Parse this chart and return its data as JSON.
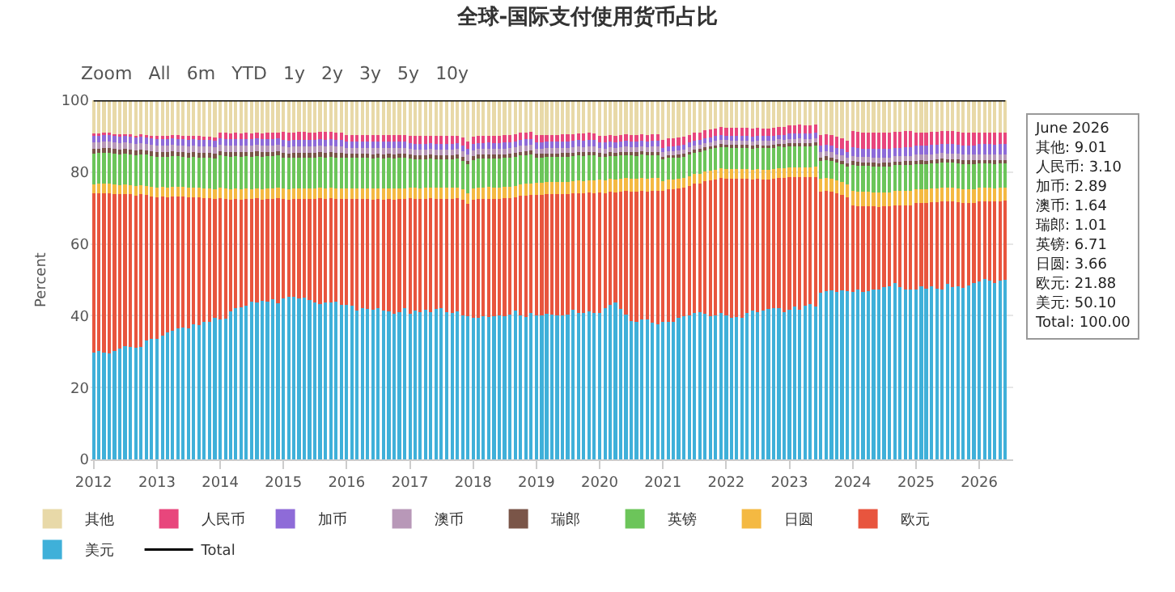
{
  "chart_data": {
    "type": "bar",
    "stacked": true,
    "title": "全球-国际支付使用货币占比",
    "ylabel": "Percent",
    "annotations": [
      "Zoom",
      "All",
      "6m",
      "YTD",
      "1y",
      "2y",
      "3y",
      "5y",
      "10y",
      "June 2026\n其他: 9.01\n人民币: 3.10\n加币: 2.89\n澳币: 1.64\n瑞郎: 1.01\n英镑: 6.71\n日圆: 3.66\n欧元: 21.88\n美元: 50.10\nTotal: 100.00"
    ],
    "x": [
      "2012-01",
      "2012-02",
      "2012-03",
      "2012-04",
      "2012-05",
      "2012-06",
      "2012-07",
      "2012-08",
      "2012-09",
      "2012-10",
      "2012-11",
      "2012-12",
      "2013-01",
      "2013-02",
      "2013-03",
      "2013-04",
      "2013-05",
      "2013-06",
      "2013-07",
      "2013-08",
      "2013-09",
      "2013-10",
      "2013-11",
      "2013-12",
      "2014-01",
      "2014-02",
      "2014-03",
      "2014-04",
      "2014-05",
      "2014-06",
      "2014-07",
      "2014-08",
      "2014-09",
      "2014-10",
      "2014-11",
      "2014-12",
      "2015-01",
      "2015-02",
      "2015-03",
      "2015-04",
      "2015-05",
      "2015-06",
      "2015-07",
      "2015-08",
      "2015-09",
      "2015-10",
      "2015-11",
      "2015-12",
      "2016-01",
      "2016-02",
      "2016-03",
      "2016-04",
      "2016-05",
      "2016-06",
      "2016-07",
      "2016-08",
      "2016-09",
      "2016-10",
      "2016-11",
      "2016-12",
      "2017-01",
      "2017-02",
      "2017-03",
      "2017-04",
      "2017-05",
      "2017-06",
      "2017-07",
      "2017-08",
      "2017-09",
      "2017-10",
      "2017-11",
      "2017-12",
      "2018-01",
      "2018-02",
      "2018-03",
      "2018-04",
      "2018-05",
      "2018-06",
      "2018-07",
      "2018-08",
      "2018-09",
      "2018-10",
      "2018-11",
      "2018-12",
      "2019-01",
      "2019-02",
      "2019-03",
      "2019-04",
      "2019-05",
      "2019-06",
      "2019-07",
      "2019-08",
      "2019-09",
      "2019-10",
      "2019-11",
      "2019-12",
      "2020-01",
      "2020-02",
      "2020-03",
      "2020-04",
      "2020-05",
      "2020-06",
      "2020-07",
      "2020-08",
      "2020-09",
      "2020-10",
      "2020-11",
      "2020-12",
      "2021-01",
      "2021-02",
      "2021-03",
      "2021-04",
      "2021-05",
      "2021-06",
      "2021-07",
      "2021-08",
      "2021-09",
      "2021-10",
      "2021-11",
      "2021-12",
      "2022-01",
      "2022-02",
      "2022-03",
      "2022-04",
      "2022-05",
      "2022-06",
      "2022-07",
      "2022-08",
      "2022-09",
      "2022-10",
      "2022-11",
      "2022-12",
      "2023-01",
      "2023-02",
      "2023-03",
      "2023-04",
      "2023-05",
      "2023-06",
      "2023-07",
      "2023-08",
      "2023-09",
      "2023-10",
      "2023-11",
      "2023-12",
      "2024-01",
      "2024-02",
      "2024-03",
      "2024-04",
      "2024-05",
      "2024-06",
      "2024-07",
      "2024-08",
      "2024-09",
      "2024-10",
      "2024-11",
      "2024-12",
      "2025-01",
      "2025-02",
      "2025-03",
      "2025-04",
      "2025-05",
      "2025-06",
      "2025-07",
      "2025-08",
      "2025-09",
      "2025-10",
      "2025-11",
      "2025-12",
      "2026-01",
      "2026-02",
      "2026-03",
      "2026-04",
      "2026-05",
      "2026-06"
    ],
    "series": [
      {
        "name": "美元",
        "color": "#3fb0d9",
        "values": [
          29.7,
          30.1,
          29.8,
          29.6,
          30.2,
          30.9,
          31.6,
          31.2,
          31.0,
          31.4,
          33.1,
          33.5,
          33.6,
          34.5,
          35.4,
          35.9,
          36.4,
          36.8,
          36.5,
          37.6,
          37.3,
          38.2,
          38.4,
          39.5,
          39.0,
          39.1,
          41.2,
          42.1,
          42.4,
          42.7,
          43.9,
          43.8,
          44.2,
          44.0,
          44.6,
          43.5,
          44.8,
          45.3,
          45.2,
          44.8,
          45.1,
          44.4,
          43.8,
          43.3,
          43.6,
          43.8,
          44.0,
          43.1,
          43.0,
          42.9,
          41.4,
          42.1,
          42.0,
          41.6,
          42.2,
          41.5,
          41.2,
          40.6,
          41.0,
          42.1,
          40.5,
          41.4,
          40.9,
          41.6,
          41.0,
          41.8,
          42.1,
          41.0,
          40.8,
          41.2,
          40.2,
          39.9,
          39.4,
          39.5,
          39.8,
          39.7,
          39.9,
          40.0,
          39.8,
          40.4,
          41.5,
          40.1,
          39.7,
          40.8,
          40.1,
          40.1,
          40.6,
          40.3,
          40.2,
          40.0,
          40.4,
          41.6,
          40.7,
          40.8,
          41.3,
          40.8,
          40.8,
          42.2,
          43.1,
          43.6,
          42.0,
          40.3,
          38.6,
          38.3,
          38.9,
          38.9,
          38.1,
          37.6,
          38.3,
          38.4,
          38.2,
          39.4,
          39.8,
          40.0,
          40.7,
          41.0,
          40.5,
          39.9,
          40.1,
          40.8,
          40.0,
          39.4,
          39.6,
          39.4,
          40.7,
          41.5,
          41.1,
          41.4,
          41.9,
          42.2,
          42.1,
          40.9,
          41.7,
          42.6,
          41.7,
          42.7,
          43.2,
          42.6,
          46.5,
          46.8,
          47.0,
          46.6,
          47.0,
          46.9,
          46.6,
          47.2,
          46.6,
          46.9,
          47.4,
          47.2,
          47.9,
          48.3,
          49.1,
          47.9,
          47.4,
          47.2,
          47.3,
          48.1,
          47.6,
          48.3,
          47.5,
          47.4,
          48.8,
          48.0,
          48.2,
          47.8,
          48.5,
          49.1,
          49.6,
          50.3,
          49.8,
          49.1,
          49.7,
          50.1
        ]
      },
      {
        "name": "欧元",
        "color": "#e8553e",
        "values": [
          44.3,
          44.0,
          44.4,
          44.6,
          43.7,
          42.9,
          42.3,
          42.6,
          42.5,
          42.4,
          40.5,
          39.8,
          39.4,
          38.6,
          37.6,
          37.4,
          36.8,
          36.3,
          36.4,
          35.4,
          35.6,
          34.6,
          34.4,
          33.1,
          33.8,
          33.5,
          31.2,
          30.5,
          30.0,
          29.9,
          28.6,
          28.9,
          28.2,
          28.6,
          28.0,
          29.3,
          27.8,
          27.1,
          27.3,
          27.8,
          27.5,
          28.1,
          28.7,
          29.4,
          29.0,
          28.9,
          28.5,
          29.4,
          29.5,
          29.6,
          31.1,
          30.4,
          30.5,
          30.8,
          30.3,
          30.9,
          31.3,
          31.8,
          31.5,
          30.4,
          32.2,
          31.2,
          31.6,
          31.0,
          31.7,
          30.8,
          30.5,
          31.6,
          31.8,
          31.5,
          32.0,
          31.2,
          32.8,
          33.0,
          32.7,
          32.9,
          32.6,
          32.5,
          32.9,
          32.4,
          31.5,
          33.3,
          33.8,
          32.9,
          33.6,
          33.6,
          33.2,
          33.5,
          33.6,
          33.9,
          33.5,
          32.4,
          33.5,
          33.3,
          33.0,
          33.4,
          33.5,
          32.0,
          31.4,
          30.8,
          32.6,
          34.4,
          36.0,
          36.2,
          35.9,
          35.7,
          36.6,
          37.1,
          36.5,
          36.8,
          37.0,
          36.0,
          35.8,
          36.2,
          36.0,
          35.9,
          36.9,
          37.8,
          37.9,
          37.5,
          38.2,
          38.7,
          38.5,
          38.7,
          37.4,
          36.4,
          37.0,
          36.6,
          36.1,
          35.9,
          36.3,
          37.4,
          36.8,
          35.9,
          36.9,
          35.8,
          35.3,
          36.1,
          28.0,
          28.0,
          27.5,
          27.4,
          26.6,
          26.0,
          24.2,
          23.4,
          23.9,
          23.6,
          23.0,
          23.1,
          22.5,
          22.1,
          21.6,
          22.8,
          23.4,
          23.6,
          24.1,
          23.4,
          23.8,
          23.3,
          24.2,
          24.5,
          23.0,
          23.8,
          23.5,
          23.7,
          23.0,
          22.4,
          22.3,
          21.6,
          22.1,
          22.7,
          22.2,
          21.88
        ]
      },
      {
        "name": "日圆",
        "color": "#f4b942",
        "values": [
          2.6,
          2.6,
          2.6,
          2.6,
          2.6,
          2.6,
          2.6,
          2.6,
          2.6,
          2.6,
          2.6,
          2.6,
          2.7,
          2.7,
          2.7,
          2.7,
          2.7,
          2.7,
          2.7,
          2.7,
          2.7,
          2.7,
          2.7,
          2.7,
          2.8,
          2.8,
          2.8,
          2.8,
          2.8,
          2.8,
          2.8,
          2.8,
          2.8,
          2.8,
          2.8,
          2.8,
          2.9,
          2.9,
          2.9,
          2.9,
          2.9,
          2.9,
          2.9,
          2.9,
          2.9,
          2.9,
          2.9,
          2.9,
          3.0,
          3.0,
          3.0,
          3.0,
          3.0,
          3.0,
          3.0,
          3.0,
          3.0,
          3.0,
          3.0,
          3.0,
          3.0,
          3.0,
          3.0,
          3.0,
          3.0,
          3.0,
          3.0,
          3.0,
          3.0,
          3.0,
          3.0,
          3.0,
          3.2,
          3.2,
          3.2,
          3.2,
          3.2,
          3.2,
          3.2,
          3.2,
          3.2,
          3.2,
          3.2,
          3.2,
          3.4,
          3.4,
          3.4,
          3.4,
          3.4,
          3.4,
          3.4,
          3.4,
          3.4,
          3.4,
          3.4,
          3.4,
          3.6,
          3.6,
          3.6,
          3.6,
          3.6,
          3.6,
          3.6,
          3.6,
          3.6,
          3.6,
          3.6,
          3.6,
          2.7,
          2.7,
          2.7,
          2.7,
          2.7,
          2.7,
          2.7,
          2.7,
          2.7,
          2.7,
          2.7,
          2.7,
          2.7,
          2.7,
          2.7,
          2.7,
          2.7,
          2.7,
          2.7,
          2.7,
          2.7,
          2.7,
          2.7,
          2.7,
          2.8,
          2.8,
          2.8,
          2.8,
          2.8,
          2.8,
          3.6,
          3.6,
          3.6,
          3.6,
          3.6,
          3.6,
          4.0,
          4.0,
          4.0,
          4.0,
          4.0,
          4.0,
          4.0,
          4.0,
          4.0,
          4.0,
          4.0,
          4.0,
          3.8,
          3.8,
          3.8,
          3.8,
          3.8,
          3.8,
          3.8,
          3.8,
          3.8,
          3.8,
          3.8,
          3.8,
          3.7,
          3.7,
          3.7,
          3.7,
          3.7,
          3.66
        ]
      },
      {
        "name": "英镑",
        "color": "#6cc55a",
        "values": [
          8.6,
          8.6,
          8.6,
          8.6,
          8.6,
          8.6,
          8.6,
          8.6,
          8.6,
          8.6,
          8.6,
          8.6,
          8.5,
          8.5,
          8.5,
          8.5,
          8.5,
          8.5,
          8.5,
          8.5,
          8.5,
          8.5,
          8.5,
          8.5,
          9.0,
          9.0,
          9.0,
          9.0,
          9.0,
          9.0,
          9.0,
          9.0,
          9.0,
          9.0,
          9.0,
          9.0,
          8.6,
          8.6,
          8.6,
          8.6,
          8.6,
          8.6,
          8.6,
          8.6,
          8.6,
          8.6,
          8.6,
          8.6,
          8.4,
          8.4,
          8.4,
          8.4,
          8.4,
          8.4,
          8.4,
          8.4,
          8.4,
          8.4,
          8.4,
          8.4,
          8.0,
          8.0,
          8.0,
          8.0,
          8.0,
          8.0,
          8.0,
          8.0,
          8.0,
          8.0,
          8.0,
          8.0,
          8.0,
          8.0,
          8.0,
          8.0,
          8.0,
          8.0,
          8.0,
          8.0,
          8.0,
          8.0,
          8.0,
          8.0,
          7.0,
          7.0,
          7.0,
          7.0,
          7.0,
          7.0,
          7.0,
          7.0,
          7.0,
          7.0,
          7.0,
          7.0,
          6.4,
          6.4,
          6.4,
          6.4,
          6.4,
          6.4,
          6.4,
          6.4,
          6.4,
          6.4,
          6.4,
          6.4,
          6.0,
          6.0,
          6.0,
          6.0,
          6.0,
          6.0,
          6.0,
          6.0,
          6.0,
          6.0,
          6.0,
          6.0,
          6.0,
          6.0,
          6.0,
          6.0,
          6.0,
          6.0,
          6.0,
          6.0,
          6.0,
          6.0,
          6.0,
          6.0,
          5.8,
          5.8,
          5.8,
          5.8,
          5.8,
          5.8,
          5.0,
          5.0,
          5.0,
          5.0,
          5.0,
          5.0,
          7.2,
          7.2,
          7.2,
          7.2,
          7.2,
          7.2,
          7.2,
          7.2,
          7.2,
          7.2,
          7.2,
          7.2,
          7.0,
          7.0,
          7.0,
          7.0,
          7.0,
          7.0,
          7.0,
          7.0,
          7.0,
          7.0,
          7.0,
          7.0,
          6.8,
          6.8,
          6.8,
          6.8,
          6.8,
          6.71
        ]
      },
      {
        "name": "瑞郎",
        "color": "#7a5548",
        "values": [
          1.3,
          1.3,
          1.3,
          1.3,
          1.3,
          1.3,
          1.3,
          1.3,
          1.3,
          1.3,
          1.3,
          1.3,
          1.3,
          1.3,
          1.3,
          1.3,
          1.3,
          1.3,
          1.3,
          1.3,
          1.3,
          1.3,
          1.3,
          1.3,
          1.3,
          1.3,
          1.3,
          1.3,
          1.3,
          1.3,
          1.3,
          1.3,
          1.3,
          1.3,
          1.3,
          1.3,
          1.3,
          1.3,
          1.3,
          1.3,
          1.3,
          1.3,
          1.3,
          1.3,
          1.3,
          1.3,
          1.3,
          1.3,
          1.2,
          1.2,
          1.2,
          1.2,
          1.2,
          1.2,
          1.2,
          1.2,
          1.2,
          1.2,
          1.2,
          1.2,
          1.1,
          1.1,
          1.1,
          1.1,
          1.1,
          1.1,
          1.1,
          1.1,
          1.1,
          1.1,
          1.1,
          1.1,
          1.1,
          1.1,
          1.1,
          1.1,
          1.1,
          1.1,
          1.1,
          1.1,
          1.1,
          1.1,
          1.1,
          1.1,
          1.0,
          1.0,
          1.0,
          1.0,
          1.0,
          1.0,
          1.0,
          1.0,
          1.0,
          1.0,
          1.0,
          1.0,
          1.0,
          1.0,
          1.0,
          1.0,
          1.0,
          1.0,
          1.0,
          1.0,
          1.0,
          1.0,
          1.0,
          1.0,
          0.8,
          0.8,
          0.8,
          0.8,
          0.8,
          0.8,
          0.8,
          0.8,
          0.8,
          0.8,
          0.8,
          0.8,
          0.8,
          0.8,
          0.8,
          0.8,
          0.8,
          0.8,
          0.8,
          0.8,
          0.8,
          0.8,
          0.8,
          0.8,
          0.9,
          0.9,
          0.9,
          0.9,
          0.9,
          0.9,
          1.0,
          1.0,
          1.0,
          1.0,
          1.0,
          1.0,
          1.0,
          1.0,
          1.0,
          1.0,
          1.0,
          1.0,
          1.0,
          1.0,
          1.0,
          1.0,
          1.0,
          1.0,
          1.0,
          1.0,
          1.0,
          1.0,
          1.0,
          1.0,
          1.0,
          1.0,
          1.0,
          1.0,
          1.0,
          1.0,
          1.0,
          1.0,
          1.0,
          1.0,
          1.0,
          1.01
        ]
      },
      {
        "name": "澳币",
        "color": "#b898b8",
        "values": [
          1.8,
          1.8,
          1.8,
          1.8,
          1.8,
          1.8,
          1.8,
          1.8,
          1.8,
          1.8,
          1.8,
          1.8,
          1.8,
          1.8,
          1.8,
          1.8,
          1.8,
          1.8,
          1.8,
          1.8,
          1.8,
          1.8,
          1.8,
          1.8,
          1.8,
          1.8,
          1.8,
          1.8,
          1.8,
          1.8,
          1.8,
          1.8,
          1.8,
          1.8,
          1.8,
          1.8,
          1.8,
          1.8,
          1.8,
          1.8,
          1.8,
          1.8,
          1.8,
          1.8,
          1.8,
          1.8,
          1.8,
          1.8,
          1.7,
          1.7,
          1.7,
          1.7,
          1.7,
          1.7,
          1.7,
          1.7,
          1.7,
          1.7,
          1.7,
          1.7,
          1.6,
          1.6,
          1.6,
          1.6,
          1.6,
          1.6,
          1.6,
          1.6,
          1.6,
          1.6,
          1.6,
          1.6,
          1.6,
          1.6,
          1.6,
          1.6,
          1.6,
          1.6,
          1.6,
          1.6,
          1.6,
          1.6,
          1.6,
          1.6,
          1.5,
          1.5,
          1.5,
          1.5,
          1.5,
          1.5,
          1.5,
          1.5,
          1.5,
          1.5,
          1.5,
          1.5,
          1.4,
          1.4,
          1.4,
          1.4,
          1.4,
          1.4,
          1.4,
          1.4,
          1.4,
          1.4,
          1.4,
          1.4,
          1.2,
          1.2,
          1.2,
          1.2,
          1.2,
          1.2,
          1.2,
          1.2,
          1.2,
          1.2,
          1.2,
          1.2,
          1.2,
          1.2,
          1.2,
          1.2,
          1.2,
          1.2,
          1.2,
          1.2,
          1.2,
          1.2,
          1.2,
          1.2,
          1.3,
          1.3,
          1.3,
          1.3,
          1.3,
          1.3,
          1.4,
          1.4,
          1.4,
          1.4,
          1.4,
          1.4,
          1.5,
          1.5,
          1.5,
          1.5,
          1.5,
          1.5,
          1.5,
          1.5,
          1.5,
          1.5,
          1.5,
          1.5,
          1.6,
          1.6,
          1.6,
          1.6,
          1.6,
          1.6,
          1.6,
          1.6,
          1.6,
          1.6,
          1.6,
          1.6,
          1.6,
          1.6,
          1.6,
          1.6,
          1.6,
          1.64
        ]
      },
      {
        "name": "加币",
        "color": "#8e6bd8",
        "values": [
          1.8,
          1.8,
          1.8,
          1.8,
          1.8,
          1.8,
          1.8,
          1.8,
          1.8,
          1.8,
          1.8,
          1.8,
          1.8,
          1.8,
          1.8,
          1.8,
          1.8,
          1.8,
          1.8,
          1.8,
          1.8,
          1.8,
          1.8,
          1.8,
          1.8,
          1.8,
          1.8,
          1.8,
          1.8,
          1.8,
          1.8,
          1.8,
          1.8,
          1.8,
          1.8,
          1.8,
          1.8,
          1.8,
          1.8,
          1.8,
          1.8,
          1.8,
          1.8,
          1.8,
          1.8,
          1.8,
          1.8,
          1.8,
          1.8,
          1.8,
          1.8,
          1.8,
          1.8,
          1.8,
          1.8,
          1.8,
          1.8,
          1.8,
          1.8,
          1.8,
          1.6,
          1.6,
          1.6,
          1.6,
          1.6,
          1.6,
          1.6,
          1.6,
          1.6,
          1.6,
          1.6,
          1.6,
          1.7,
          1.7,
          1.7,
          1.7,
          1.7,
          1.7,
          1.7,
          1.7,
          1.7,
          1.7,
          1.7,
          1.7,
          1.8,
          1.8,
          1.8,
          1.8,
          1.8,
          1.8,
          1.8,
          1.8,
          1.8,
          1.8,
          1.8,
          1.8,
          1.6,
          1.6,
          1.6,
          1.6,
          1.6,
          1.6,
          1.6,
          1.6,
          1.6,
          1.6,
          1.6,
          1.6,
          1.3,
          1.3,
          1.3,
          1.3,
          1.3,
          1.3,
          1.3,
          1.3,
          1.3,
          1.3,
          1.3,
          1.3,
          1.3,
          1.3,
          1.3,
          1.3,
          1.3,
          1.3,
          1.3,
          1.3,
          1.3,
          1.3,
          1.3,
          1.3,
          1.4,
          1.4,
          1.4,
          1.4,
          1.4,
          1.4,
          1.8,
          1.8,
          1.8,
          1.8,
          1.8,
          1.8,
          2.4,
          2.4,
          2.4,
          2.4,
          2.4,
          2.4,
          2.4,
          2.4,
          2.4,
          2.4,
          2.4,
          2.4,
          2.6,
          2.6,
          2.6,
          2.6,
          2.6,
          2.6,
          2.6,
          2.6,
          2.6,
          2.6,
          2.6,
          2.6,
          2.8,
          2.8,
          2.8,
          2.8,
          2.8,
          2.89
        ]
      },
      {
        "name": "人民币",
        "color": "#e8467c",
        "values": [
          0.6,
          0.6,
          0.6,
          0.6,
          0.6,
          0.6,
          0.6,
          0.6,
          0.6,
          0.6,
          0.6,
          0.6,
          1.0,
          1.0,
          1.0,
          1.0,
          1.0,
          1.0,
          1.0,
          1.0,
          1.0,
          1.0,
          1.0,
          1.0,
          1.6,
          1.6,
          1.6,
          1.6,
          1.6,
          1.6,
          1.6,
          1.6,
          1.6,
          1.6,
          1.6,
          1.6,
          2.2,
          2.2,
          2.2,
          2.2,
          2.2,
          2.2,
          2.2,
          2.2,
          2.2,
          2.2,
          2.2,
          2.2,
          1.8,
          1.8,
          1.8,
          1.8,
          1.8,
          1.8,
          1.8,
          1.8,
          1.8,
          1.8,
          1.8,
          1.8,
          2.2,
          2.2,
          2.2,
          2.2,
          2.2,
          2.2,
          2.2,
          2.2,
          2.2,
          2.2,
          2.2,
          2.2,
          2.0,
          2.0,
          2.0,
          2.0,
          2.0,
          2.0,
          2.0,
          2.0,
          2.0,
          2.0,
          2.0,
          2.0,
          1.9,
          1.9,
          1.9,
          1.9,
          1.9,
          1.9,
          1.9,
          1.9,
          1.9,
          1.9,
          1.9,
          1.9,
          1.8,
          1.8,
          1.8,
          1.8,
          1.8,
          1.8,
          1.8,
          1.8,
          1.8,
          1.8,
          1.8,
          1.8,
          2.2,
          2.2,
          2.2,
          2.2,
          2.2,
          2.2,
          2.2,
          2.2,
          2.2,
          2.2,
          2.2,
          2.2,
          2.2,
          2.2,
          2.2,
          2.2,
          2.2,
          2.2,
          2.2,
          2.2,
          2.2,
          2.2,
          2.2,
          2.2,
          2.4,
          2.4,
          2.4,
          2.4,
          2.4,
          2.4,
          3.0,
          3.0,
          3.0,
          3.0,
          3.0,
          3.0,
          4.5,
          4.5,
          4.5,
          4.5,
          4.5,
          4.5,
          4.5,
          4.5,
          4.5,
          4.5,
          4.5,
          4.5,
          3.6,
          3.6,
          3.6,
          3.6,
          3.6,
          3.6,
          3.6,
          3.6,
          3.6,
          3.6,
          3.6,
          3.6,
          3.2,
          3.2,
          3.2,
          3.2,
          3.2,
          3.1
        ]
      },
      {
        "name": "其他",
        "color": "#e8d9a8",
        "values": [
          9.3,
          9.2,
          9.1,
          9.1,
          9.4,
          9.5,
          9.4,
          9.5,
          9.8,
          9.5,
          9.7,
          10.0,
          9.9,
          9.8,
          9.9,
          9.6,
          9.7,
          9.8,
          10.0,
          9.9,
          10.0,
          10.1,
          10.1,
          10.3,
          8.9,
          9.1,
          9.3,
          9.1,
          9.3,
          9.1,
          9.2,
          9.0,
          9.3,
          9.1,
          9.1,
          8.9,
          8.8,
          9.0,
          8.9,
          8.8,
          8.8,
          8.9,
          8.9,
          8.7,
          8.8,
          8.7,
          8.9,
          8.9,
          9.6,
          9.6,
          9.6,
          9.6,
          9.6,
          9.7,
          9.6,
          9.7,
          9.6,
          9.7,
          9.6,
          9.6,
          9.8,
          9.9,
          10.0,
          9.9,
          9.8,
          9.9,
          9.9,
          9.9,
          9.9,
          9.8,
          10.3,
          11.4,
          10.2,
          9.9,
          9.9,
          9.8,
          9.9,
          9.9,
          9.7,
          9.6,
          9.4,
          9.0,
          8.9,
          8.7,
          9.7,
          9.7,
          9.6,
          9.6,
          9.6,
          9.5,
          9.5,
          9.4,
          9.2,
          9.3,
          9.1,
          9.2,
          9.9,
          10.0,
          9.7,
          9.8,
          9.6,
          9.5,
          9.6,
          9.7,
          9.4,
          9.6,
          9.5,
          9.5,
          11.0,
          10.6,
          10.6,
          10.4,
          10.2,
          9.6,
          9.1,
          8.9,
          8.4,
          8.1,
          7.8,
          7.5,
          7.6,
          7.7,
          7.7,
          7.7,
          7.7,
          7.9,
          7.7,
          7.8,
          7.8,
          7.7,
          7.4,
          7.5,
          6.9,
          6.9,
          6.8,
          6.9,
          6.9,
          6.7,
          9.7,
          9.4,
          9.7,
          10.2,
          10.6,
          11.3,
          8.6,
          8.8,
          8.9,
          8.9,
          9.0,
          9.1,
          9.0,
          9.0,
          8.7,
          8.7,
          8.6,
          8.6,
          9.0,
          8.9,
          9.0,
          8.8,
          8.7,
          8.5,
          8.6,
          8.6,
          8.7,
          8.9,
          8.9,
          8.9,
          9.0,
          9.0,
          9.0,
          9.1,
          9.0,
          9.01
        ]
      },
      {
        "name": "Total",
        "type": "line",
        "color": "#000000",
        "values": [
          100,
          100,
          100,
          100,
          100,
          100,
          100,
          100,
          100,
          100,
          100,
          100,
          100,
          100,
          100,
          100,
          100,
          100,
          100,
          100,
          100,
          100,
          100,
          100,
          100,
          100,
          100,
          100,
          100,
          100,
          100,
          100,
          100,
          100,
          100,
          100,
          100,
          100,
          100,
          100,
          100,
          100,
          100,
          100,
          100,
          100,
          100,
          100,
          100,
          100,
          100,
          100,
          100,
          100,
          100,
          100,
          100,
          100,
          100,
          100,
          100,
          100,
          100,
          100,
          100,
          100,
          100,
          100,
          100,
          100,
          100,
          100,
          100,
          100,
          100,
          100,
          100,
          100,
          100,
          100,
          100,
          100,
          100,
          100,
          100,
          100,
          100,
          100,
          100,
          100,
          100,
          100,
          100,
          100,
          100,
          100,
          100,
          100,
          100,
          100,
          100,
          100,
          100,
          100,
          100,
          100,
          100,
          100,
          100,
          100,
          100,
          100,
          100,
          100,
          100,
          100,
          100,
          100,
          100,
          100,
          100,
          100,
          100,
          100,
          100,
          100,
          100,
          100,
          100,
          100,
          100,
          100,
          100,
          100,
          100,
          100,
          100,
          100,
          100,
          100,
          100,
          100,
          100,
          100,
          100,
          100,
          100,
          100,
          100,
          100,
          100,
          100,
          100,
          100,
          100,
          100,
          100,
          100,
          100,
          100,
          100,
          100,
          100,
          100,
          100,
          100,
          100,
          100,
          100,
          100,
          100,
          100,
          100,
          100
        ]
      }
    ],
    "xlim": [
      "2011-12-15",
      "2026-07-16"
    ],
    "xticks": [
      "2012",
      "2013",
      "2014",
      "2015",
      "2016",
      "2017",
      "2018",
      "2019",
      "2020",
      "2021",
      "2022",
      "2023",
      "2024",
      "2025",
      "2026"
    ],
    "ylim": [
      0,
      100
    ],
    "yticks": [
      0,
      20,
      40,
      60,
      80,
      100
    ],
    "grid": "y",
    "legend": "bottom",
    "line_style": "solid"
  }
}
